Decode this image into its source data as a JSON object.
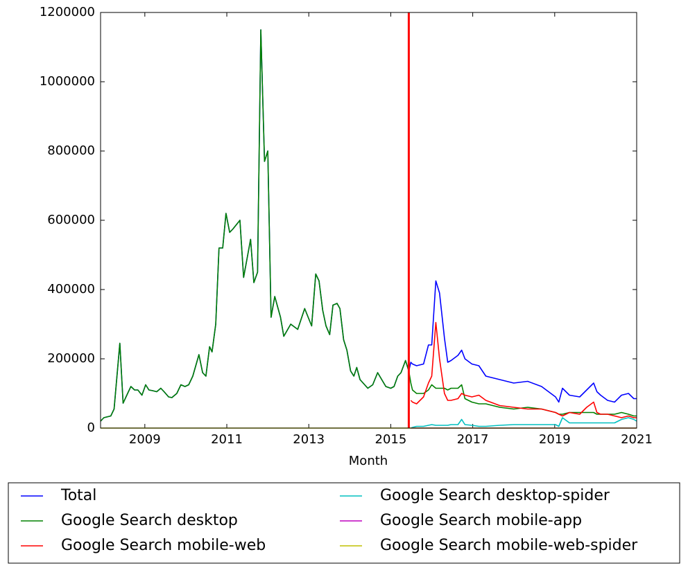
{
  "chart_data": {
    "type": "line",
    "xlabel": "Month",
    "x": [
      2007.92,
      2008.0,
      2008.17,
      2008.25,
      2008.39,
      2008.47,
      2008.58,
      2008.66,
      2008.75,
      2008.83,
      2008.93,
      2009.02,
      2009.1,
      2009.19,
      2009.29,
      2009.39,
      2009.47,
      2009.58,
      2009.66,
      2009.78,
      2009.88,
      2009.98,
      2010.07,
      2010.17,
      2010.32,
      2010.41,
      2010.49,
      2010.58,
      2010.64,
      2010.73,
      2010.81,
      2010.9,
      2010.98,
      2011.07,
      2011.15,
      2011.32,
      2011.41,
      2011.58,
      2011.66,
      2011.75,
      2011.83,
      2011.92,
      2012.0,
      2012.08,
      2012.17,
      2012.31,
      2012.39,
      2012.56,
      2012.73,
      2012.9,
      2013.07,
      2013.17,
      2013.25,
      2013.34,
      2013.42,
      2013.51,
      2013.59,
      2013.69,
      2013.76,
      2013.85,
      2013.93,
      2014.02,
      2014.1,
      2014.17,
      2014.25,
      2014.44,
      2014.56,
      2014.68,
      2014.88,
      2015.0,
      2015.08,
      2015.17,
      2015.25,
      2015.36,
      2015.44,
      2015.49,
      2015.53,
      2015.63,
      2015.8,
      2015.92,
      2016.0,
      2016.1,
      2016.19,
      2016.31,
      2016.39,
      2016.47,
      2016.64,
      2016.73,
      2016.81,
      2016.98,
      2017.15,
      2017.32,
      2017.66,
      2018.0,
      2018.34,
      2018.68,
      2019.02,
      2019.1,
      2019.19,
      2019.36,
      2019.61,
      2019.78,
      2019.95,
      2020.03,
      2020.12,
      2020.29,
      2020.46,
      2020.63,
      2020.8,
      2020.93,
      2021.0
    ],
    "series": [
      {
        "name": "Total",
        "color": "#0000ff",
        "values": [
          20000,
          30000,
          35000,
          55000,
          245000,
          72000,
          100000,
          120000,
          110000,
          110000,
          95000,
          125000,
          110000,
          108000,
          105000,
          115000,
          105000,
          90000,
          88000,
          100000,
          125000,
          120000,
          125000,
          150000,
          212000,
          160000,
          150000,
          235000,
          220000,
          300000,
          520000,
          520000,
          620000,
          565000,
          575000,
          600000,
          435000,
          545000,
          420000,
          450000,
          1150000,
          770000,
          800000,
          320000,
          380000,
          320000,
          265000,
          300000,
          285000,
          345000,
          295000,
          445000,
          425000,
          340000,
          295000,
          270000,
          355000,
          360000,
          345000,
          255000,
          225000,
          165000,
          150000,
          175000,
          140000,
          115000,
          125000,
          160000,
          120000,
          115000,
          120000,
          150000,
          160000,
          195000,
          165000,
          190000,
          185000,
          180000,
          185000,
          240000,
          240000,
          425000,
          390000,
          260000,
          190000,
          195000,
          210000,
          225000,
          200000,
          185000,
          180000,
          150000,
          140000,
          130000,
          135000,
          120000,
          90000,
          75000,
          115000,
          95000,
          90000,
          110000,
          130000,
          105000,
          95000,
          80000,
          75000,
          95000,
          100000,
          85000,
          85000
        ]
      },
      {
        "name": "Google Search desktop",
        "color": "#008000",
        "values": [
          20000,
          30000,
          35000,
          55000,
          245000,
          72000,
          100000,
          120000,
          110000,
          110000,
          95000,
          125000,
          110000,
          108000,
          105000,
          115000,
          105000,
          90000,
          88000,
          100000,
          125000,
          120000,
          125000,
          150000,
          212000,
          160000,
          150000,
          235000,
          220000,
          300000,
          520000,
          520000,
          620000,
          565000,
          575000,
          600000,
          435000,
          545000,
          420000,
          450000,
          1150000,
          770000,
          800000,
          320000,
          380000,
          320000,
          265000,
          300000,
          285000,
          345000,
          295000,
          445000,
          425000,
          340000,
          295000,
          270000,
          355000,
          360000,
          345000,
          255000,
          225000,
          165000,
          150000,
          175000,
          140000,
          115000,
          125000,
          160000,
          120000,
          115000,
          120000,
          150000,
          160000,
          195000,
          165000,
          130000,
          110000,
          100000,
          100000,
          110000,
          125000,
          115000,
          115000,
          115000,
          110000,
          115000,
          115000,
          125000,
          85000,
          75000,
          70000,
          70000,
          60000,
          55000,
          60000,
          55000,
          45000,
          40000,
          40000,
          45000,
          45000,
          45000,
          45000,
          40000,
          40000,
          40000,
          40000,
          45000,
          40000,
          35000,
          35000
        ]
      },
      {
        "name": "Google Search mobile-web",
        "color": "#ff0000",
        "values": [
          null,
          null,
          null,
          null,
          null,
          null,
          null,
          null,
          null,
          null,
          null,
          null,
          null,
          null,
          null,
          null,
          null,
          null,
          null,
          null,
          null,
          null,
          null,
          null,
          null,
          null,
          null,
          null,
          null,
          null,
          null,
          null,
          null,
          null,
          null,
          null,
          null,
          null,
          null,
          null,
          null,
          null,
          null,
          null,
          null,
          null,
          null,
          null,
          null,
          null,
          null,
          null,
          null,
          null,
          null,
          null,
          null,
          null,
          null,
          null,
          null,
          null,
          null,
          null,
          null,
          null,
          null,
          null,
          null,
          null,
          null,
          null,
          null,
          null,
          null,
          80000,
          75000,
          70000,
          90000,
          130000,
          150000,
          305000,
          200000,
          100000,
          80000,
          80000,
          85000,
          100000,
          95000,
          90000,
          95000,
          80000,
          65000,
          60000,
          55000,
          55000,
          45000,
          40000,
          35000,
          45000,
          40000,
          60000,
          75000,
          45000,
          40000,
          40000,
          35000,
          30000,
          35000,
          30000,
          30000
        ]
      },
      {
        "name": "Google Search desktop-spider",
        "color": "#00bfbf",
        "values": [
          null,
          null,
          null,
          null,
          null,
          null,
          null,
          null,
          null,
          null,
          null,
          null,
          null,
          null,
          null,
          null,
          null,
          null,
          null,
          null,
          null,
          null,
          null,
          null,
          null,
          null,
          null,
          null,
          null,
          null,
          null,
          null,
          null,
          null,
          null,
          null,
          null,
          null,
          null,
          null,
          null,
          null,
          null,
          null,
          null,
          null,
          null,
          null,
          null,
          null,
          null,
          null,
          null,
          null,
          null,
          null,
          null,
          null,
          null,
          null,
          null,
          null,
          null,
          null,
          null,
          null,
          null,
          null,
          null,
          null,
          null,
          null,
          null,
          null,
          null,
          0,
          2000,
          5000,
          5000,
          8000,
          10000,
          8000,
          8000,
          8000,
          8000,
          10000,
          10000,
          25000,
          10000,
          8000,
          5000,
          5000,
          8000,
          10000,
          10000,
          10000,
          10000,
          5000,
          30000,
          15000,
          15000,
          15000,
          15000,
          15000,
          15000,
          15000,
          15000,
          25000,
          30000,
          25000,
          20000
        ]
      },
      {
        "name": "Google Search mobile-app",
        "color": "#bf00bf",
        "values": [
          null,
          null,
          null,
          null,
          null,
          null,
          null,
          null,
          null,
          null,
          null,
          null,
          null,
          null,
          null,
          null,
          null,
          null,
          null,
          null,
          null,
          null,
          null,
          null,
          null,
          null,
          null,
          null,
          null,
          null,
          null,
          null,
          null,
          null,
          null,
          null,
          null,
          null,
          null,
          null,
          null,
          null,
          null,
          null,
          null,
          null,
          null,
          null,
          null,
          null,
          null,
          null,
          null,
          null,
          null,
          null,
          null,
          null,
          null,
          null,
          null,
          null,
          null,
          null,
          null,
          null,
          null,
          null,
          null,
          null,
          null,
          null,
          null,
          null,
          null,
          0,
          0,
          0,
          0,
          0,
          0,
          0,
          0,
          0,
          0,
          0,
          0,
          0,
          0,
          0,
          0,
          0,
          0,
          0,
          0,
          0,
          0,
          0,
          0,
          0,
          0,
          0,
          0,
          0,
          0,
          0,
          0,
          0,
          0,
          0,
          0
        ]
      },
      {
        "name": "Google Search mobile-web-spider",
        "color": "#bfbf00",
        "values": [
          0,
          0,
          0,
          0,
          0,
          0,
          0,
          0,
          0,
          0,
          0,
          0,
          0,
          0,
          0,
          0,
          0,
          0,
          0,
          0,
          0,
          0,
          0,
          0,
          0,
          0,
          0,
          0,
          0,
          0,
          0,
          0,
          0,
          0,
          0,
          0,
          0,
          0,
          0,
          0,
          0,
          0,
          0,
          0,
          0,
          0,
          0,
          0,
          0,
          0,
          0,
          0,
          0,
          0,
          0,
          0,
          0,
          0,
          0,
          0,
          0,
          0,
          0,
          0,
          0,
          0,
          0,
          0,
          0,
          0,
          0,
          0,
          0,
          0,
          0,
          0,
          0,
          0,
          0,
          0,
          0,
          0,
          0,
          0,
          0,
          0,
          0,
          0,
          0,
          0,
          0,
          0,
          0,
          0,
          0,
          0,
          0,
          0,
          0,
          0,
          0,
          0,
          0,
          0,
          0,
          0,
          0,
          0,
          0,
          0,
          0
        ]
      }
    ],
    "vline": {
      "x": 2015.44,
      "color": "#ff0000"
    },
    "xlim": [
      2007.92,
      2021.0
    ],
    "xticks": [
      2009,
      2011,
      2013,
      2015,
      2017,
      2019,
      2021
    ],
    "ylim": [
      0,
      1200000
    ],
    "yticks": [
      0,
      200000,
      400000,
      600000,
      800000,
      1000000,
      1200000
    ],
    "grid": false,
    "legend": "below"
  }
}
